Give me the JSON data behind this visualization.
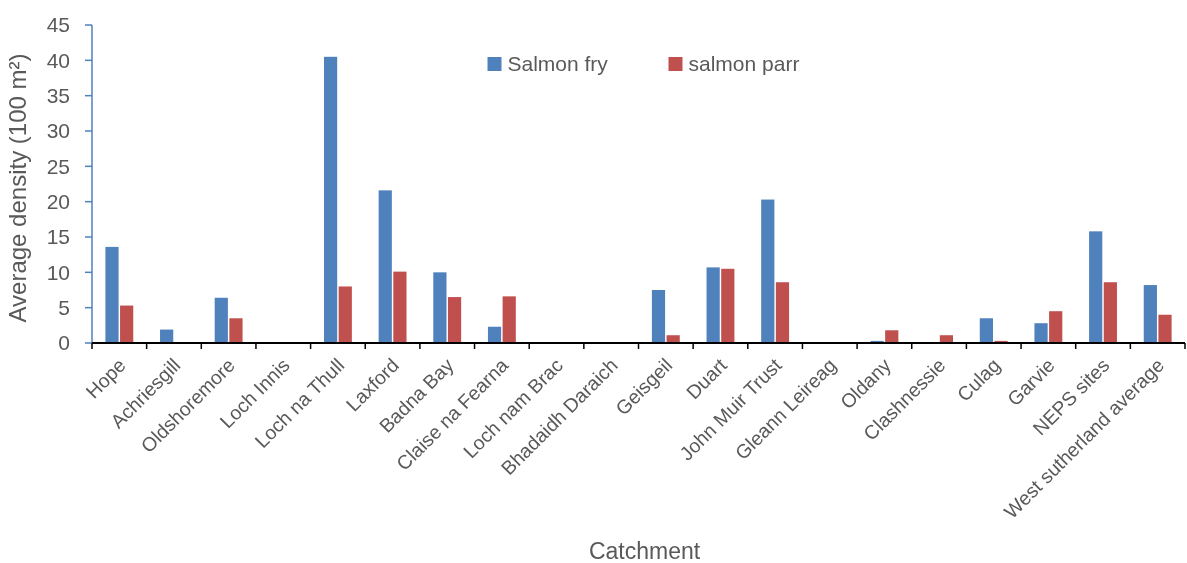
{
  "chart_data": {
    "type": "bar",
    "xlabel": "Catchment",
    "ylabel": "Average density (100 m²)",
    "categories": [
      "Hope",
      "Achriesgill",
      "Oldshoremore",
      "Loch Innis",
      "Loch na Thull",
      "Laxford",
      "Badna Bay",
      "Claise na Fearna",
      "Loch nam Brac",
      "Bhadaidh Daraich",
      "Geisgeil",
      "Duart",
      "John Muir Trust",
      "Gleann Leireag",
      "Oldany",
      "Clashnessie",
      "Culag",
      "Garvie",
      "NEPS sites",
      "West sutherland average"
    ],
    "series": [
      {
        "name": "Salmon fry",
        "color": "#4f81bd",
        "values": [
          13.6,
          1.9,
          6.4,
          0,
          40.5,
          21.6,
          10.0,
          2.3,
          0,
          0,
          7.5,
          10.7,
          20.3,
          0,
          0.3,
          0,
          3.5,
          2.8,
          15.8,
          8.2
        ]
      },
      {
        "name": "salmon parr",
        "color": "#c0504d",
        "values": [
          5.3,
          0,
          3.5,
          0,
          8.0,
          10.1,
          6.5,
          6.6,
          0,
          0,
          1.1,
          10.5,
          8.6,
          0,
          1.8,
          1.1,
          0.3,
          4.5,
          8.6,
          4.0
        ]
      }
    ],
    "ylim": [
      0,
      45
    ],
    "yticks": [
      0,
      5,
      10,
      15,
      20,
      25,
      30,
      35,
      40,
      45
    ],
    "grid": false,
    "legend": "top"
  }
}
